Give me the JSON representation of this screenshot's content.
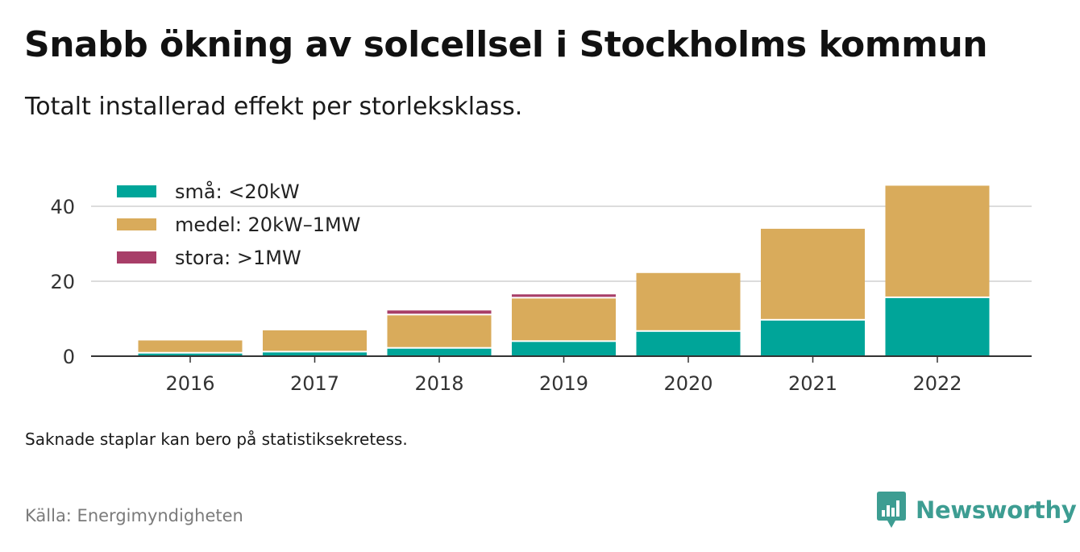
{
  "title": "Snabb ökning av solcellsel i Stockholms kommun",
  "subtitle": "Totalt installerad effekt per storleksklass.",
  "note": "Saknade staplar kan bero på statistiksekretess.",
  "source": "Källa: Energimyndigheten",
  "brand": {
    "name": "Newsworthy",
    "icon": "newsworthy-logo-icon",
    "color": "#3d9d92"
  },
  "chart_data": {
    "type": "bar",
    "stacked": true,
    "categories": [
      "2016",
      "2017",
      "2018",
      "2019",
      "2020",
      "2021",
      "2022"
    ],
    "series": [
      {
        "name": "små: <20kW",
        "color": "#00a599",
        "values": [
          0.7,
          1.0,
          2.0,
          3.8,
          6.5,
          9.5,
          15.5
        ]
      },
      {
        "name": "medel: 20kW–1MW",
        "color": "#d9ab5b",
        "values": [
          3.5,
          5.9,
          8.9,
          11.6,
          15.7,
          24.5,
          30.0
        ]
      },
      {
        "name": "stora: >1MW",
        "color": "#a83e68",
        "values": [
          0,
          0,
          1.3,
          1.1,
          0,
          0,
          0
        ]
      }
    ],
    "yticks": [
      0,
      20,
      40
    ],
    "ylim": [
      0,
      50
    ],
    "xlabel": "",
    "ylabel": "",
    "grid": true,
    "legend": "top-left"
  }
}
